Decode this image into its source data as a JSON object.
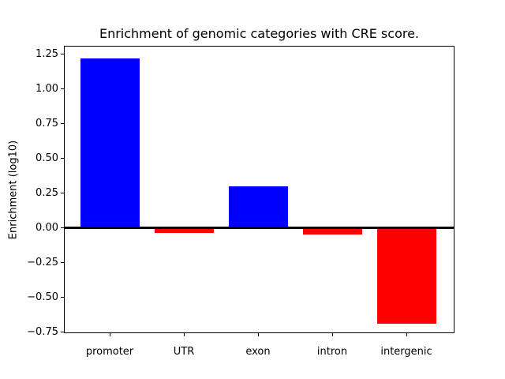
{
  "figure": {
    "title": "Enrichment of genomic categories with CRE score.",
    "ylabel": "Enrichment (log10)"
  },
  "chart_data": {
    "type": "bar",
    "title": "Enrichment of genomic categories with CRE score.",
    "xlabel": "",
    "ylabel": "Enrichment (log10)",
    "categories": [
      "promoter",
      "UTR",
      "exon",
      "intron",
      "intergenic"
    ],
    "values": [
      1.22,
      -0.04,
      0.3,
      -0.05,
      -0.69
    ],
    "bar_colors": [
      "#0000ff",
      "#ff0000",
      "#0000ff",
      "#ff0000",
      "#ff0000"
    ],
    "positive_color": "#0000ff",
    "negative_color": "#ff0000",
    "baseline_color": "#000000",
    "ylim": [
      -0.76,
      1.31
    ],
    "yticks": [
      1.25,
      1.0,
      0.75,
      0.5,
      0.25,
      0.0,
      -0.25,
      -0.5,
      -0.75
    ],
    "ytick_labels": [
      "1.25",
      "1.00",
      "0.75",
      "0.50",
      "0.25",
      "0.00",
      "−0.25",
      "−0.50",
      "−0.75"
    ],
    "grid": false,
    "legend": null
  }
}
